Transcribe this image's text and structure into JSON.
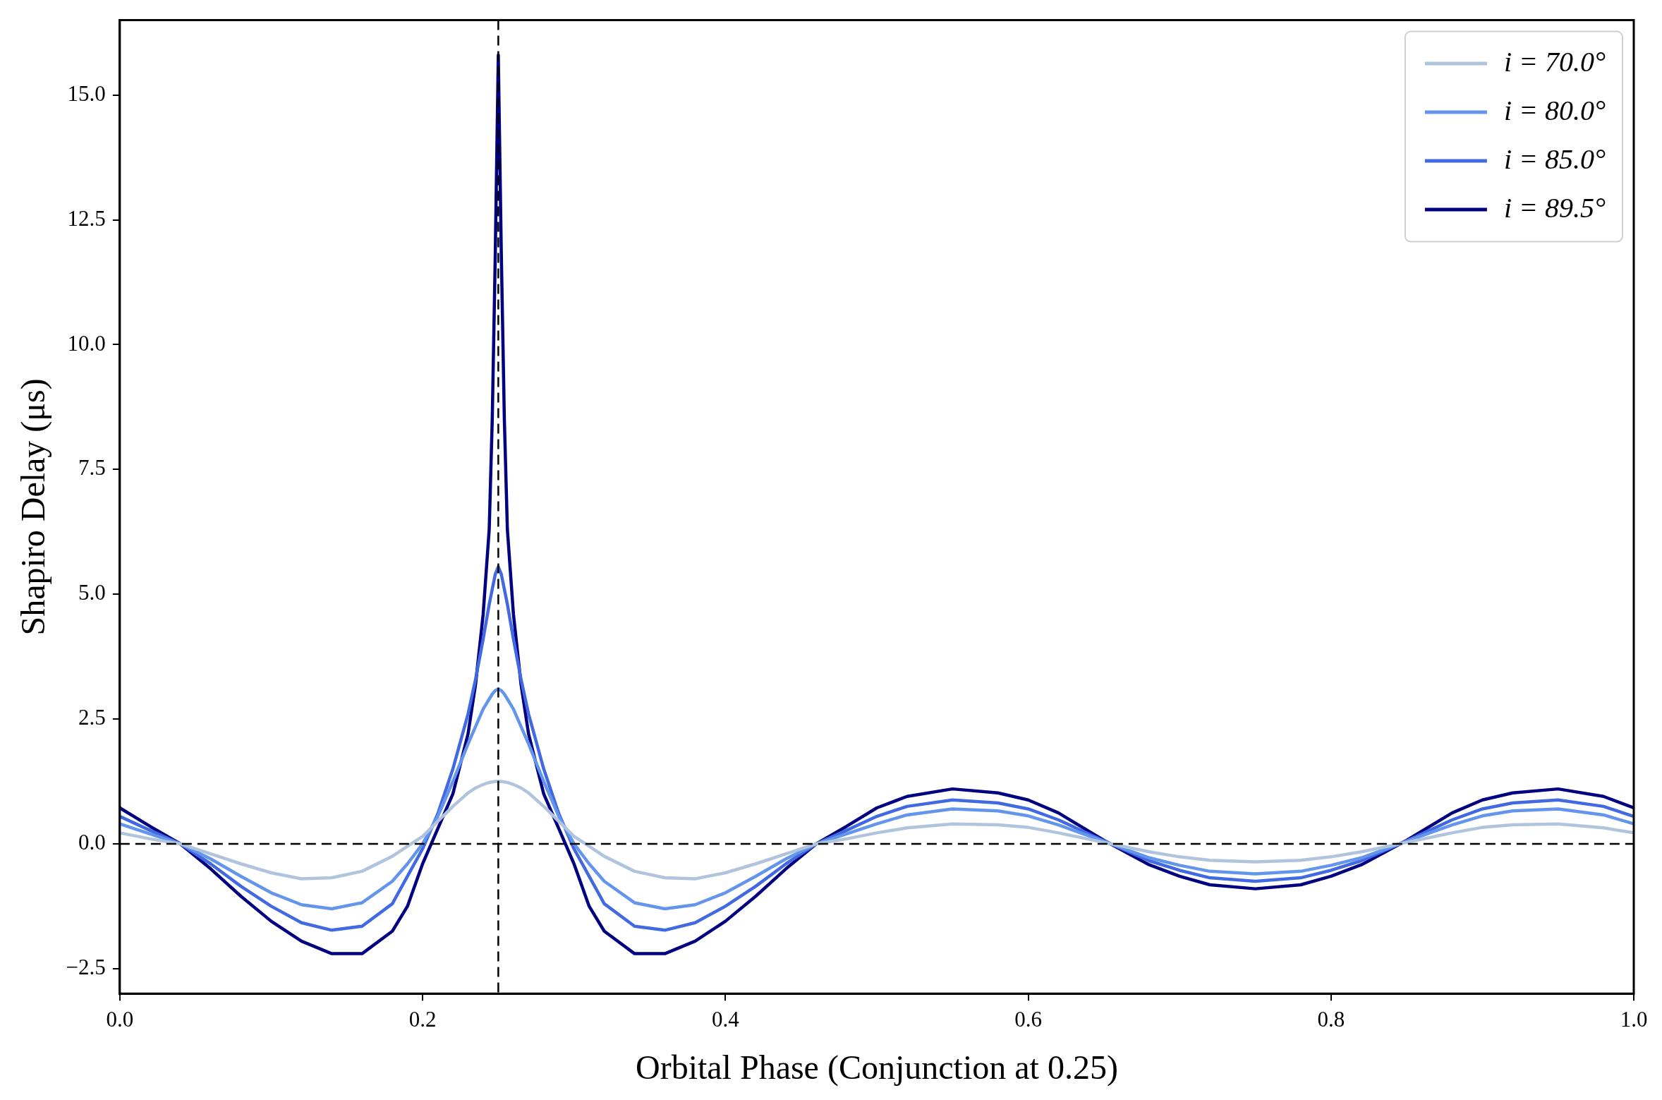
{
  "chart_data": {
    "type": "line",
    "xlabel": "Orbital Phase (Conjunction at 0.25)",
    "ylabel": "Shapiro Delay (μs)",
    "x": [
      0,
      0.02,
      0.04,
      0.06,
      0.08,
      0.1,
      0.12,
      0.14,
      0.16,
      0.18,
      0.19,
      0.2,
      0.21,
      0.22,
      0.23,
      0.235,
      0.24,
      0.244,
      0.246,
      0.248,
      0.25,
      0.252,
      0.254,
      0.256,
      0.26,
      0.265,
      0.27,
      0.28,
      0.29,
      0.3,
      0.31,
      0.32,
      0.34,
      0.36,
      0.38,
      0.4,
      0.42,
      0.44,
      0.46,
      0.48,
      0.5,
      0.52,
      0.55,
      0.58,
      0.6,
      0.62,
      0.65,
      0.68,
      0.7,
      0.72,
      0.75,
      0.78,
      0.8,
      0.82,
      0.85,
      0.88,
      0.9,
      0.92,
      0.95,
      0.98,
      1.0
    ],
    "series": [
      {
        "name": "i = 70.0°",
        "color": "#b0c4de",
        "values": [
          0.22,
          0.1,
          0.0,
          -0.2,
          -0.4,
          -0.58,
          -0.7,
          -0.68,
          -0.55,
          -0.25,
          -0.05,
          0.15,
          0.45,
          0.75,
          1.02,
          1.12,
          1.19,
          1.23,
          1.24,
          1.25,
          1.25,
          1.25,
          1.24,
          1.23,
          1.19,
          1.12,
          1.02,
          0.75,
          0.45,
          0.15,
          -0.05,
          -0.25,
          -0.55,
          -0.68,
          -0.7,
          -0.58,
          -0.4,
          -0.2,
          0.0,
          0.1,
          0.22,
          0.32,
          0.4,
          0.38,
          0.33,
          0.22,
          0.03,
          -0.16,
          -0.26,
          -0.33,
          -0.36,
          -0.33,
          -0.26,
          -0.16,
          0.03,
          0.22,
          0.33,
          0.38,
          0.4,
          0.32,
          0.22
        ]
      },
      {
        "name": "i = 80.0°",
        "color": "#6495ed",
        "values": [
          0.4,
          0.2,
          0.0,
          -0.3,
          -0.65,
          -0.98,
          -1.22,
          -1.3,
          -1.18,
          -0.75,
          -0.4,
          0.0,
          0.55,
          1.25,
          2.0,
          2.35,
          2.7,
          2.9,
          3.0,
          3.07,
          3.1,
          3.07,
          3.0,
          2.9,
          2.7,
          2.35,
          2.0,
          1.25,
          0.55,
          0.0,
          -0.4,
          -0.75,
          -1.18,
          -1.3,
          -1.22,
          -0.98,
          -0.65,
          -0.3,
          0.0,
          0.2,
          0.4,
          0.58,
          0.7,
          0.66,
          0.56,
          0.38,
          0.05,
          -0.28,
          -0.43,
          -0.55,
          -0.6,
          -0.55,
          -0.43,
          -0.28,
          0.05,
          0.38,
          0.56,
          0.66,
          0.7,
          0.58,
          0.4
        ]
      },
      {
        "name": "i = 85.0°",
        "color": "#4169e1",
        "values": [
          0.55,
          0.27,
          0.0,
          -0.4,
          -0.85,
          -1.25,
          -1.58,
          -1.73,
          -1.65,
          -1.2,
          -0.65,
          -0.1,
          0.6,
          1.5,
          2.6,
          3.3,
          4.1,
          4.8,
          5.1,
          5.4,
          5.55,
          5.4,
          5.1,
          4.8,
          4.1,
          3.3,
          2.6,
          1.5,
          0.6,
          -0.1,
          -0.65,
          -1.2,
          -1.65,
          -1.73,
          -1.58,
          -1.25,
          -0.85,
          -0.4,
          0.0,
          0.27,
          0.55,
          0.75,
          0.88,
          0.82,
          0.7,
          0.48,
          0.06,
          -0.34,
          -0.53,
          -0.68,
          -0.75,
          -0.68,
          -0.53,
          -0.34,
          0.06,
          0.48,
          0.7,
          0.82,
          0.88,
          0.75,
          0.55
        ]
      },
      {
        "name": "i = 89.5°",
        "color": "#000080",
        "values": [
          0.72,
          0.35,
          0.0,
          -0.5,
          -1.05,
          -1.55,
          -1.95,
          -2.2,
          -2.2,
          -1.75,
          -1.25,
          -0.4,
          0.3,
          1.0,
          2.2,
          3.2,
          4.6,
          6.3,
          8.5,
          11.8,
          15.8,
          11.8,
          8.5,
          6.3,
          4.6,
          3.2,
          2.2,
          1.0,
          0.3,
          -0.4,
          -1.25,
          -1.75,
          -2.2,
          -2.2,
          -1.95,
          -1.55,
          -1.05,
          -0.5,
          0.0,
          0.35,
          0.72,
          0.95,
          1.1,
          1.02,
          0.88,
          0.62,
          0.07,
          -0.42,
          -0.65,
          -0.82,
          -0.9,
          -0.82,
          -0.65,
          -0.42,
          0.07,
          0.62,
          0.88,
          1.02,
          1.1,
          0.95,
          0.72
        ]
      }
    ],
    "xlim": [
      0,
      1
    ],
    "ylim": [
      -3,
      16.5
    ],
    "xticks": [
      {
        "value": 0,
        "label": "0.0"
      },
      0.2,
      0.4,
      0.6,
      0.8,
      {
        "value": 1,
        "label": "1.0"
      }
    ],
    "yticks": [
      {
        "value": -2.5,
        "label": "−2.5"
      },
      {
        "value": 0,
        "label": "0.0"
      },
      2.5,
      {
        "value": 5,
        "label": "5.0"
      },
      7.5,
      {
        "value": 10,
        "label": "10.0"
      },
      12.5,
      {
        "value": 15,
        "label": "15.0"
      }
    ],
    "ref_lines": [
      {
        "axis": "x",
        "value": 0.25,
        "color": "#000000",
        "line_style": "dashed"
      },
      {
        "axis": "y",
        "value": 0,
        "color": "#000000",
        "line_style": "dashed"
      }
    ],
    "legend": "top right",
    "grid": false,
    "marker": "none",
    "line_style": "solid"
  }
}
